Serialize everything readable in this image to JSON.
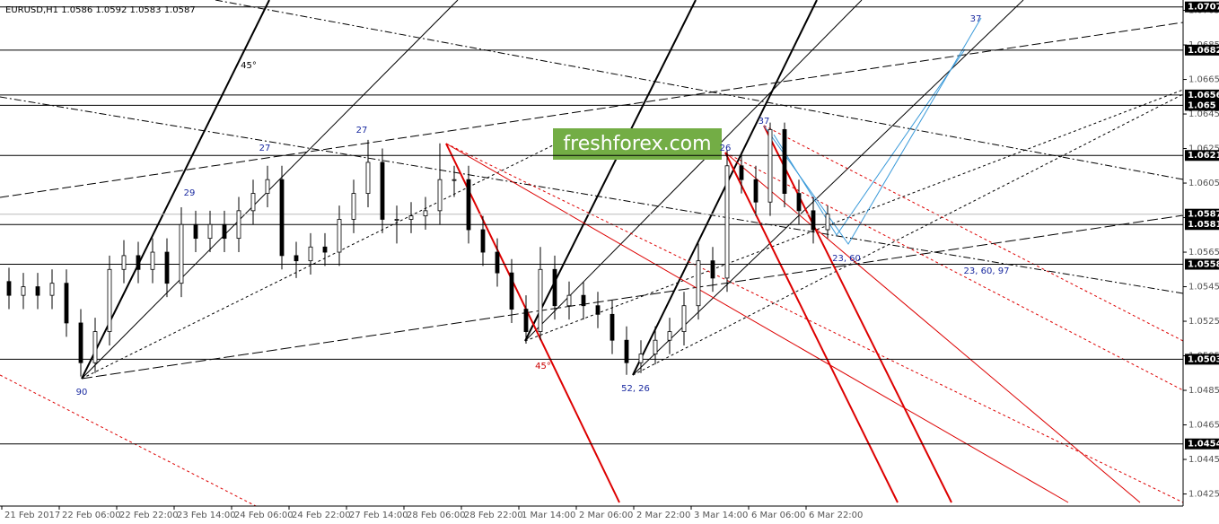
{
  "chart_data": {
    "type": "candlestick",
    "header": "EURUSD,H1  1.0586 1.0592 1.0583 1.0587",
    "watermark": "freshforex.com",
    "categories": [
      "21 Feb 2017",
      null,
      null,
      null,
      "22 Feb 06:00",
      null,
      null,
      null,
      "22 Feb 22:00",
      null,
      null,
      null,
      "23 Feb 14:00",
      null,
      null,
      null,
      "24 Feb 06:00",
      null,
      null,
      null,
      "24 Feb 22:00",
      null,
      null,
      null,
      "27 Feb 14:00",
      null,
      null,
      null,
      "28 Feb 06:00",
      null,
      null,
      null,
      "28 Feb 22:00",
      null,
      null,
      null,
      "1 Mar 14:00",
      null,
      null,
      null,
      "2 Mar 06:00",
      null,
      null,
      null,
      "2 Mar 22:00",
      null,
      null,
      null,
      "3 Mar 14:00",
      null,
      null,
      null,
      "6 Mar 06:00",
      null,
      null,
      null,
      "6 Mar 22:00",
      null
    ],
    "open": [
      1.0548,
      1.054,
      1.0545,
      1.054,
      1.0547,
      1.0524,
      1.0501,
      1.0519,
      1.0555,
      1.0563,
      1.0555,
      1.0565,
      1.0547,
      1.0581,
      1.0573,
      1.0581,
      1.0573,
      1.0589,
      1.0599,
      1.0607,
      1.0563,
      1.056,
      1.0568,
      1.0565,
      1.0584,
      1.0599,
      1.0617,
      1.0584,
      1.0584,
      1.0586,
      1.0589,
      1.0607,
      1.0607,
      1.0578,
      1.0565,
      1.0553,
      1.0532,
      1.0519,
      1.0555,
      1.0534,
      1.054,
      1.0534,
      1.0529,
      1.0514,
      1.0501,
      1.0506,
      1.0514,
      1.0519,
      1.0534,
      1.056,
      1.055,
      1.0615,
      1.0607,
      1.0594,
      1.0636,
      1.0599,
      1.0589,
      1.0578
    ],
    "high": [
      1.0556,
      1.0553,
      1.0553,
      1.0555,
      1.0555,
      1.0532,
      1.0527,
      1.0563,
      1.0572,
      1.0571,
      1.0573,
      1.0573,
      1.0591,
      1.0589,
      1.0589,
      1.0589,
      1.0597,
      1.0607,
      1.0615,
      1.0615,
      1.0571,
      1.0576,
      1.0576,
      1.0592,
      1.0607,
      1.063,
      1.0625,
      1.0592,
      1.0594,
      1.0597,
      1.0628,
      1.0615,
      1.0615,
      1.0586,
      1.0573,
      1.0561,
      1.054,
      1.0568,
      1.0563,
      1.0548,
      1.0548,
      1.0542,
      1.0537,
      1.0522,
      1.0514,
      1.0522,
      1.0527,
      1.0542,
      1.057,
      1.0568,
      1.0624,
      1.0623,
      1.0615,
      1.064,
      1.064,
      1.0607,
      1.0597,
      1.0592
    ],
    "low": [
      1.0532,
      1.0532,
      1.0532,
      1.0532,
      1.0516,
      1.0493,
      1.0495,
      1.0511,
      1.0547,
      1.0547,
      1.0547,
      1.0539,
      1.0539,
      1.0565,
      1.0565,
      1.0565,
      1.0565,
      1.0581,
      1.0591,
      1.0555,
      1.055,
      1.0552,
      1.0557,
      1.0557,
      1.0576,
      1.0591,
      1.0576,
      1.057,
      1.0576,
      1.0578,
      1.0581,
      1.0597,
      1.057,
      1.0557,
      1.0545,
      1.0524,
      1.0512,
      1.0514,
      1.0526,
      1.0526,
      1.0526,
      1.0521,
      1.0506,
      1.0494,
      1.0495,
      1.05,
      1.0506,
      1.0511,
      1.0526,
      1.0542,
      1.0542,
      1.0599,
      1.0586,
      1.0586,
      1.0591,
      1.0581,
      1.057,
      1.0573
    ],
    "close": [
      1.054,
      1.0545,
      1.054,
      1.0547,
      1.0524,
      1.0501,
      1.0519,
      1.0555,
      1.0563,
      1.0555,
      1.0565,
      1.0547,
      1.0581,
      1.0573,
      1.0581,
      1.0573,
      1.0589,
      1.0599,
      1.0607,
      1.0563,
      1.056,
      1.0568,
      1.0565,
      1.0584,
      1.0599,
      1.0617,
      1.0584,
      1.0584,
      1.0586,
      1.0589,
      1.0607,
      1.0607,
      1.0578,
      1.0565,
      1.0553,
      1.0532,
      1.0519,
      1.0555,
      1.0534,
      1.054,
      1.0534,
      1.0529,
      1.0514,
      1.0501,
      1.0506,
      1.0514,
      1.0519,
      1.0534,
      1.056,
      1.055,
      1.0615,
      1.0607,
      1.0594,
      1.0636,
      1.0599,
      1.0589,
      1.0578,
      1.0587
    ],
    "ylim": [
      1.0418,
      1.0711
    ],
    "yticks": [
      1.0425,
      1.0445,
      1.0465,
      1.0485,
      1.0505,
      1.0525,
      1.0545,
      1.0565,
      1.0585,
      1.0605,
      1.0625,
      1.0645,
      1.0665,
      1.0685,
      1.0705
    ],
    "levels": [
      1.0707,
      1.0682,
      1.0656,
      1.065,
      1.0621,
      1.0581,
      1.0558,
      1.0503,
      1.0454
    ],
    "current_price": 1.0587,
    "annotations": [
      {
        "text": "45°",
        "color": "#000000"
      },
      {
        "text": "29",
        "color": "#1a2aa0"
      },
      {
        "text": "27",
        "color": "#1a2aa0"
      },
      {
        "text": "27",
        "color": "#1a2aa0"
      },
      {
        "text": "90",
        "color": "#1a2aa0"
      },
      {
        "text": "45°",
        "color": "#cc0000"
      },
      {
        "text": "52, 26",
        "color": "#1a2aa0"
      },
      {
        "text": "26",
        "color": "#1a2aa0"
      },
      {
        "text": "37",
        "color": "#1a2aa0"
      },
      {
        "text": "23, 60",
        "color": "#1a2aa0"
      },
      {
        "text": "23, 60, 97",
        "color": "#1a2aa0"
      },
      {
        "text": "37",
        "color": "#1a2aa0"
      }
    ]
  }
}
